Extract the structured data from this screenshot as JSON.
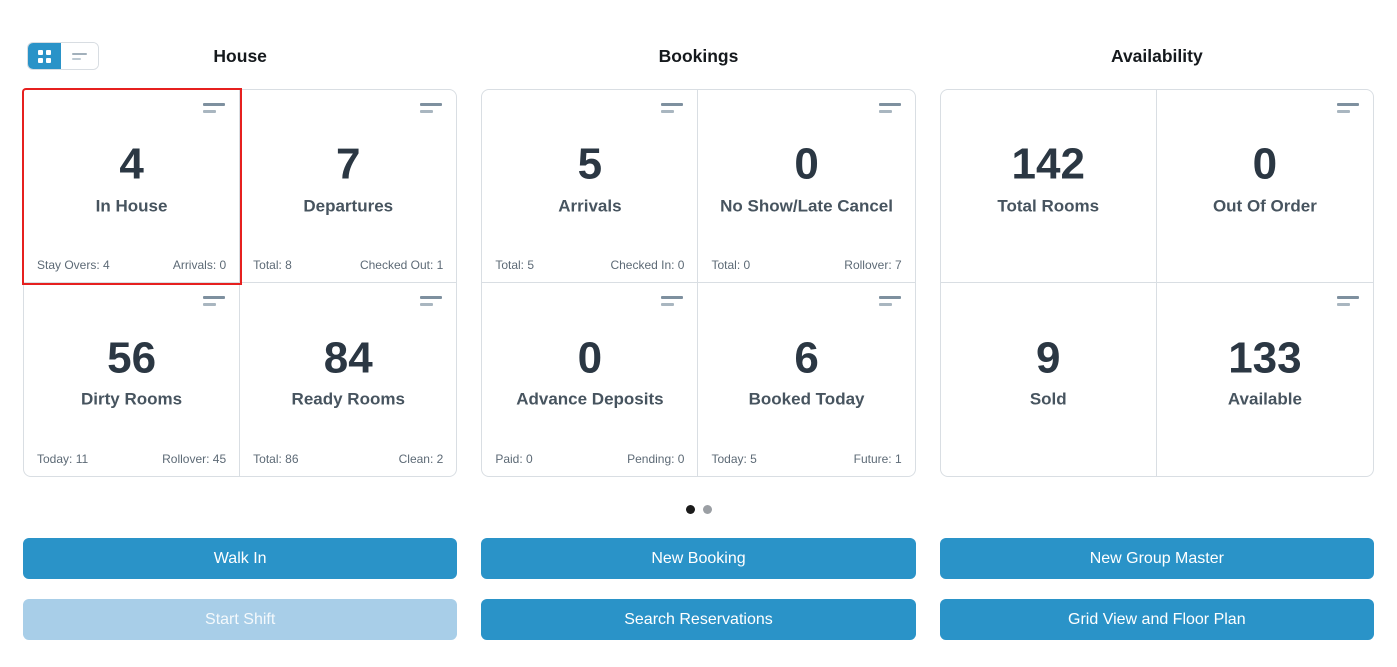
{
  "view_toggle": {
    "grid_button": {
      "icon": "grid-icon",
      "active": true
    },
    "list_button": {
      "icon": "list-lines-icon",
      "active": false
    }
  },
  "sections": [
    {
      "title": "House",
      "cards": [
        {
          "value": "4",
          "label": "In House",
          "footer_left": "Stay Overs: 4",
          "footer_right": "Arrivals: 0",
          "menu_icon": true,
          "selected": true
        },
        {
          "value": "7",
          "label": "Departures",
          "footer_left": "Total: 8",
          "footer_right": "Checked Out: 1",
          "menu_icon": true
        },
        {
          "value": "56",
          "label": "Dirty Rooms",
          "footer_left": "Today: 11",
          "footer_right": "Rollover: 45",
          "menu_icon": true
        },
        {
          "value": "84",
          "label": "Ready Rooms",
          "footer_left": "Total: 86",
          "footer_right": "Clean: 2",
          "menu_icon": true
        }
      ]
    },
    {
      "title": "Bookings",
      "cards": [
        {
          "value": "5",
          "label": "Arrivals",
          "footer_left": "Total: 5",
          "footer_right": "Checked In: 0",
          "menu_icon": true
        },
        {
          "value": "0",
          "label": "No Show/Late Cancel",
          "footer_left": "Total: 0",
          "footer_right": "Rollover: 7",
          "menu_icon": true
        },
        {
          "value": "0",
          "label": "Advance Deposits",
          "footer_left": "Paid: 0",
          "footer_right": "Pending: 0",
          "menu_icon": true
        },
        {
          "value": "6",
          "label": "Booked Today",
          "footer_left": "Today: 5",
          "footer_right": "Future: 1",
          "menu_icon": true
        }
      ]
    },
    {
      "title": "Availability",
      "cards": [
        {
          "value": "142",
          "label": "Total Rooms",
          "menu_icon": false
        },
        {
          "value": "0",
          "label": "Out Of Order",
          "menu_icon": true
        },
        {
          "value": "9",
          "label": "Sold",
          "menu_icon": false
        },
        {
          "value": "133",
          "label": "Available",
          "menu_icon": true
        }
      ]
    }
  ],
  "pagination": {
    "dots": [
      {
        "active": true
      },
      {
        "active": false
      }
    ]
  },
  "actions": [
    {
      "label": "Walk In"
    },
    {
      "label": "New Booking"
    },
    {
      "label": "New Group Master"
    },
    {
      "label": "Start Shift",
      "disabled": true
    },
    {
      "label": "Search Reservations"
    },
    {
      "label": "Grid View and Floor Plan"
    }
  ],
  "colors": {
    "accent_blue": "#2a93c8",
    "disabled_blue": "#a8cee8",
    "selected_red": "#e6201f",
    "card_border": "#d9dee3",
    "icon_dark": "#7e909f",
    "icon_light": "#a9b6c0",
    "number_dark": "#2b3743",
    "label_slate": "#47545f",
    "footer_gray": "#5d6a76",
    "dot_active": "#1b1b1b",
    "dot_inactive": "#9b9fa4"
  }
}
